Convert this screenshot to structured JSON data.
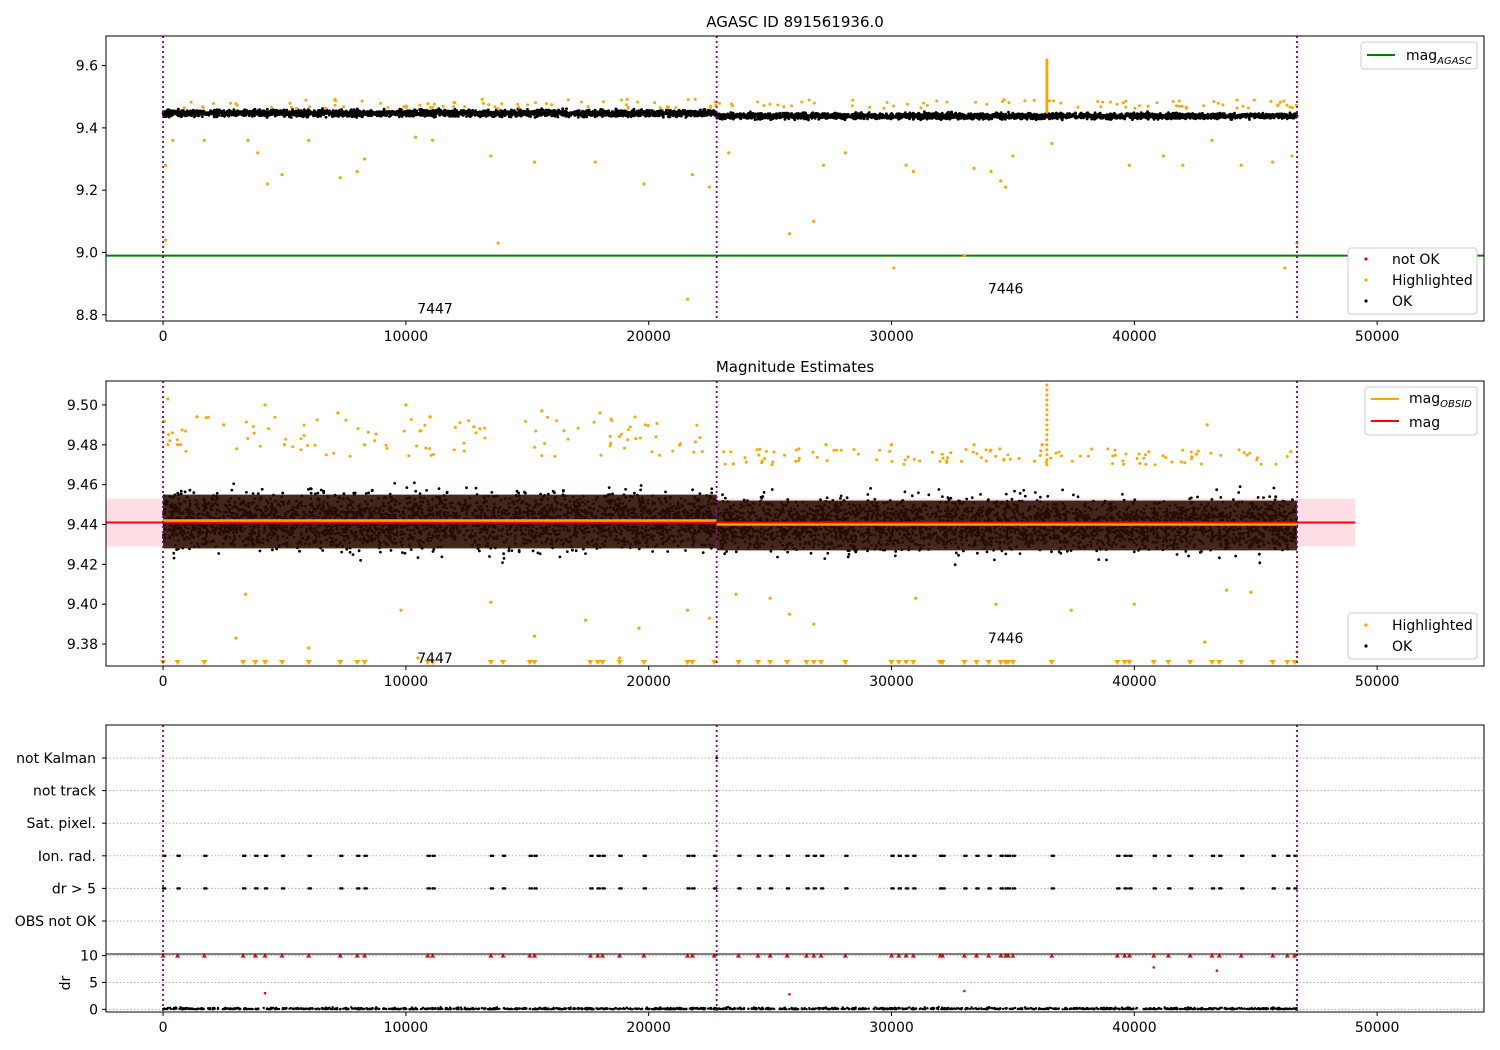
{
  "chart_data": [
    {
      "type": "scatter",
      "title": "AGASC ID 891561936.0",
      "xlabel": "",
      "ylabel": "",
      "xlim": [
        -2350,
        54400
      ],
      "ylim": [
        8.78,
        9.695
      ],
      "x_ticks": [
        0,
        10000,
        20000,
        30000,
        40000,
        50000
      ],
      "x_tick_labels": [
        "0",
        "10000",
        "20000",
        "30000",
        "40000",
        "50000"
      ],
      "y_ticks": [
        8.8,
        9.0,
        9.2,
        9.4,
        9.6
      ],
      "y_tick_labels": [
        "8.8",
        "9.0",
        "9.2",
        "9.4",
        "9.6"
      ],
      "obs_boundaries": [
        0,
        22800,
        46700
      ],
      "obs_labels": [
        {
          "text": "7447",
          "x": 11200,
          "y": 8.82
        },
        {
          "text": "7446",
          "x": 34700,
          "y": 8.885
        }
      ],
      "reference_lines": [
        {
          "name": "mag_AGASC",
          "y": 8.99,
          "x_range": [
            -2350,
            54400
          ],
          "color": "#008000"
        }
      ],
      "series": [
        {
          "name": "OK",
          "color": "#000000",
          "y_center": 9.44,
          "y_band": [
            9.42,
            9.465
          ],
          "density": "dense"
        },
        {
          "name": "Highlighted",
          "color": "#ffa500",
          "points": [
            [
              100,
              9.28
            ],
            [
              100,
              9.04
            ],
            [
              400,
              9.36
            ],
            [
              1700,
              9.36
            ],
            [
              3500,
              9.36
            ],
            [
              3900,
              9.32
            ],
            [
              4300,
              9.22
            ],
            [
              4900,
              9.25
            ],
            [
              6000,
              9.36
            ],
            [
              7300,
              9.24
            ],
            [
              8000,
              9.26
            ],
            [
              8300,
              9.3
            ],
            [
              10400,
              9.37
            ],
            [
              11100,
              9.36
            ],
            [
              13500,
              9.31
            ],
            [
              13800,
              9.03
            ],
            [
              15300,
              9.29
            ],
            [
              17800,
              9.29
            ],
            [
              19800,
              9.22
            ],
            [
              21600,
              8.85
            ],
            [
              21800,
              9.25
            ],
            [
              22500,
              9.21
            ],
            [
              23300,
              9.32
            ],
            [
              25800,
              9.06
            ],
            [
              26800,
              9.1
            ],
            [
              27200,
              9.28
            ],
            [
              28100,
              9.32
            ],
            [
              30100,
              8.95
            ],
            [
              30600,
              9.28
            ],
            [
              30900,
              9.26
            ],
            [
              33000,
              8.99
            ],
            [
              33400,
              9.27
            ],
            [
              34100,
              9.26
            ],
            [
              34500,
              9.23
            ],
            [
              34700,
              9.21
            ],
            [
              35000,
              9.31
            ],
            [
              36600,
              9.35
            ],
            [
              39800,
              9.28
            ],
            [
              41200,
              9.31
            ],
            [
              42000,
              9.28
            ],
            [
              43200,
              9.36
            ],
            [
              44400,
              9.28
            ],
            [
              45700,
              9.29
            ],
            [
              46200,
              8.95
            ],
            [
              46500,
              9.31
            ],
            [
              46700,
              9.03
            ]
          ],
          "spike": {
            "x": 36400,
            "y_range": [
              9.45,
              9.62
            ]
          }
        },
        {
          "name": "not OK",
          "color": "#ff0000",
          "points": []
        }
      ],
      "legend": {
        "entries": [
          "not OK",
          "Highlighted",
          "OK"
        ],
        "placement": "lower right"
      },
      "legend_lines": {
        "entries": [
          {
            "label": "mag",
            "sub": "AGASC",
            "color": "#008000"
          }
        ],
        "placement": "upper right"
      }
    },
    {
      "type": "scatter",
      "title": "Magnitude Estimates",
      "xlabel": "",
      "ylabel": "",
      "xlim": [
        -2350,
        54400
      ],
      "ylim": [
        9.369,
        9.512
      ],
      "x_ticks": [
        0,
        10000,
        20000,
        30000,
        40000,
        50000
      ],
      "x_tick_labels": [
        "0",
        "10000",
        "20000",
        "30000",
        "40000",
        "50000"
      ],
      "y_ticks": [
        9.38,
        9.4,
        9.42,
        9.44,
        9.46,
        9.48,
        9.5
      ],
      "y_tick_labels": [
        "9.38",
        "9.40",
        "9.42",
        "9.44",
        "9.46",
        "9.48",
        "9.50"
      ],
      "obs_boundaries": [
        0,
        22800,
        46700
      ],
      "obs_labels": [
        {
          "text": "7447",
          "x": 11200,
          "y": 9.373
        },
        {
          "text": "7446",
          "x": 34700,
          "y": 9.383
        }
      ],
      "mag_band": {
        "x_range": [
          -2350,
          49100
        ],
        "y_range": [
          9.429,
          9.453
        ],
        "color": "#ffc0cb"
      },
      "reference_lines": [
        {
          "name": "mag",
          "y": 9.441,
          "x_range": [
            -2350,
            49100
          ],
          "color": "#ff0000"
        },
        {
          "name": "mag_OBSID (7447)",
          "y": 9.442,
          "x_range": [
            0,
            22800
          ],
          "color": "#ffa500"
        },
        {
          "name": "mag_OBSID (7446)",
          "y": 9.44,
          "x_range": [
            22800,
            46700
          ],
          "color": "#ffa500"
        }
      ],
      "series": [
        {
          "name": "OK",
          "color": "#000000",
          "y_center": 9.441,
          "y_band": [
            9.402,
            9.475
          ],
          "density": "dense"
        },
        {
          "name": "Highlighted",
          "color": "#ffa500",
          "points": [
            [
              200,
              9.503
            ],
            [
              200,
              9.48
            ],
            [
              600,
              9.48
            ],
            [
              1400,
              9.494
            ],
            [
              2500,
              9.49
            ],
            [
              3000,
              9.383
            ],
            [
              3400,
              9.405
            ],
            [
              4200,
              9.5
            ],
            [
              5000,
              9.48
            ],
            [
              6000,
              9.378
            ],
            [
              7200,
              9.496
            ],
            [
              8300,
              9.48
            ],
            [
              9800,
              9.397
            ],
            [
              10000,
              9.5
            ],
            [
              10500,
              9.373
            ],
            [
              11000,
              9.494
            ],
            [
              12800,
              9.489
            ],
            [
              13500,
              9.401
            ],
            [
              15300,
              9.384
            ],
            [
              15600,
              9.497
            ],
            [
              17400,
              9.392
            ],
            [
              18000,
              9.496
            ],
            [
              18800,
              9.373
            ],
            [
              19600,
              9.388
            ],
            [
              21600,
              9.397
            ],
            [
              22500,
              9.393
            ],
            [
              23600,
              9.405
            ],
            [
              25000,
              9.403
            ],
            [
              25800,
              9.395
            ],
            [
              26800,
              9.39
            ],
            [
              27300,
              9.48
            ],
            [
              30000,
              9.48
            ],
            [
              31000,
              9.403
            ],
            [
              33400,
              9.48
            ],
            [
              34300,
              9.4
            ],
            [
              36200,
              9.48
            ],
            [
              37400,
              9.397
            ],
            [
              40000,
              9.4
            ],
            [
              42900,
              9.381
            ],
            [
              43000,
              9.49
            ],
            [
              43800,
              9.407
            ],
            [
              44800,
              9.406
            ],
            [
              46700,
              9.376
            ]
          ],
          "spike": {
            "x": 36400,
            "y_range": [
              9.47,
              9.512
            ]
          },
          "lower_limits_x": [
            0,
            600,
            1700,
            3300,
            3800,
            4200,
            4900,
            6000,
            7300,
            8000,
            8300,
            10900,
            11100,
            13500,
            14000,
            15100,
            15300,
            17600,
            17900,
            18100,
            18800,
            19800,
            21600,
            21800,
            22700,
            23700,
            24500,
            25000,
            25700,
            26500,
            26800,
            27100,
            28100,
            30000,
            30300,
            30600,
            30900,
            32000,
            32100,
            33000,
            33500,
            34000,
            34500,
            34700,
            34800,
            35000,
            36600,
            39300,
            39600,
            39800,
            40800,
            41400,
            42300,
            43200,
            43500,
            44400,
            45700,
            46300,
            46600
          ]
        }
      ],
      "legend": {
        "entries": [
          "Highlighted",
          "OK"
        ],
        "placement": "lower right"
      },
      "legend_lines": {
        "entries": [
          {
            "label": "mag",
            "sub": "OBSID",
            "color": "#ffa500"
          },
          {
            "label": "mag",
            "sub": "",
            "color": "#ff0000"
          }
        ],
        "placement": "upper right"
      }
    },
    {
      "type": "scatter",
      "title": "",
      "xlabel": "",
      "ylabel": "",
      "xlim": [
        -2350,
        54400
      ],
      "categories": [
        "not Kalman",
        "not track",
        "Sat. pixel.",
        "Ion. rad.",
        "dr > 5",
        "OBS not OK"
      ],
      "obs_boundaries": [
        0,
        22800,
        46700
      ],
      "flag_points_x": [
        0,
        600,
        1700,
        3300,
        3800,
        4200,
        4900,
        6000,
        7300,
        8000,
        8300,
        10900,
        11100,
        13500,
        14000,
        15100,
        15300,
        17600,
        17900,
        18100,
        18800,
        19800,
        21600,
        21800,
        22700,
        23700,
        24500,
        25000,
        25700,
        26500,
        26800,
        27100,
        28100,
        30000,
        30300,
        30600,
        30900,
        32000,
        32100,
        33000,
        33500,
        34000,
        34500,
        34700,
        34800,
        35000,
        36600,
        39300,
        39600,
        39800,
        40800,
        41400,
        42300,
        43200,
        43500,
        44400,
        45700,
        46300,
        46600
      ],
      "flag_rows": [
        "Ion. rad.",
        "dr > 5"
      ],
      "extra_flags": [
        {
          "row": "not Kalman",
          "x": 22800
        }
      ]
    },
    {
      "type": "scatter",
      "title": "",
      "xlabel": "",
      "ylabel": "dr",
      "xlim": [
        -2350,
        54400
      ],
      "ylim": [
        -0.5,
        10.3
      ],
      "x_ticks": [
        0,
        10000,
        20000,
        30000,
        40000,
        50000
      ],
      "x_tick_labels": [
        "0",
        "10000",
        "20000",
        "30000",
        "40000",
        "50000"
      ],
      "y_ticks": [
        0,
        5,
        10
      ],
      "y_tick_labels": [
        "0",
        "5",
        "10"
      ],
      "obs_boundaries": [
        0,
        22800,
        46700
      ],
      "series": [
        {
          "name": "OK",
          "color": "#000000",
          "y_band": [
            0,
            0.6
          ],
          "density": "dense"
        },
        {
          "name": "not OK (upper limit)",
          "color": "#ff0000",
          "marker": "triangle-up",
          "y": 10,
          "x": [
            0,
            600,
            1700,
            3300,
            3800,
            4200,
            4900,
            6000,
            7300,
            8000,
            8300,
            10900,
            11100,
            13500,
            14000,
            15100,
            15300,
            17600,
            17900,
            18100,
            18800,
            19800,
            21600,
            21800,
            22700,
            23700,
            24500,
            25000,
            25700,
            26500,
            26800,
            27100,
            28100,
            30000,
            30300,
            30600,
            30900,
            32000,
            32100,
            33000,
            33500,
            34000,
            34500,
            34700,
            34800,
            35000,
            36600,
            39300,
            39600,
            39800,
            40800,
            41400,
            42300,
            43200,
            43500,
            44400,
            45700,
            46300,
            46600
          ]
        },
        {
          "name": "not OK",
          "color": "#ff0000",
          "points": [
            [
              4200,
              3.0
            ],
            [
              25800,
              2.8
            ],
            [
              33000,
              3.4
            ],
            [
              40800,
              7.8
            ],
            [
              43400,
              7.2
            ]
          ]
        }
      ]
    }
  ]
}
